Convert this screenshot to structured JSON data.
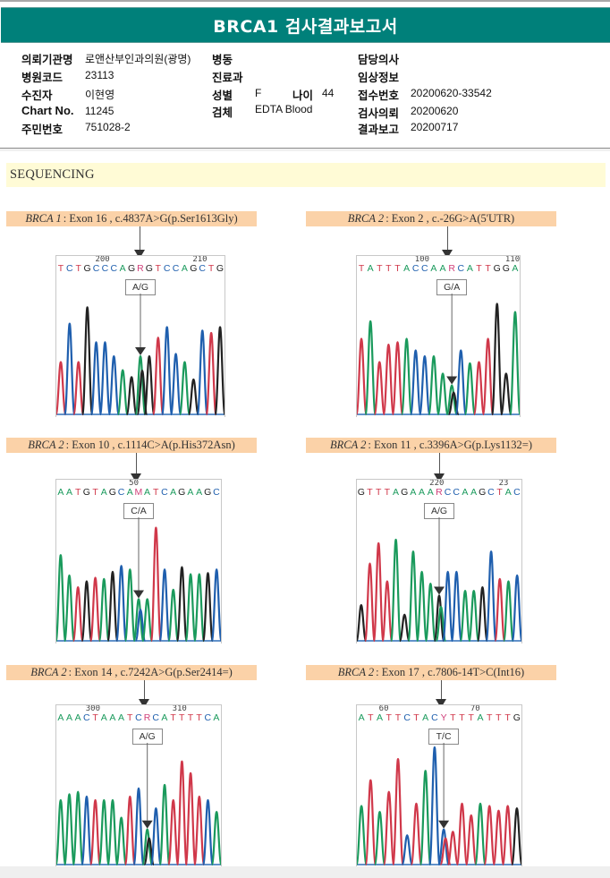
{
  "report": {
    "title": "BRCA1 검사결과보고서",
    "header_color": "#00807a"
  },
  "patient_info": {
    "institution_label": "의뢰기관명",
    "institution_value": "로앤산부인과의원(광명)",
    "hospital_code_label": "병원코드",
    "hospital_code_value": "23113",
    "patient_label": "수진자",
    "patient_value": "이현영",
    "chart_no_label": "Chart No.",
    "chart_no_value": "11245",
    "resident_no_label": "주민번호",
    "resident_no_value": "751028-2",
    "ward_label": "병동",
    "ward_value": "",
    "department_label": "진료과",
    "department_value": "",
    "sex_label": "성별",
    "sex_value": "F",
    "age_label": "나이",
    "age_value": "44",
    "specimen_label": "검체",
    "specimen_value": "EDTA Blood",
    "doctor_label": "담당의사",
    "doctor_value": "",
    "clinical_info_label": "임상정보",
    "clinical_info_value": "",
    "receipt_no_label": "접수번호",
    "receipt_no_value": "20200620-33542",
    "request_date_label": "검사의뢰",
    "request_date_value": "20200620",
    "report_date_label": "결과보고",
    "report_date_value": "20200717"
  },
  "section": {
    "title": "SEQUENCING"
  },
  "base_colors": {
    "A": "#1a9a5c",
    "C": "#1f5fae",
    "G": "#222222",
    "T": "#d0384a",
    "R": "#d0407a",
    "Y": "#d0407a",
    "M": "#d0407a"
  },
  "variants": [
    {
      "gene": "BRCA 1",
      "description": ": Exon 16 , c.4837A>G(p.Ser1613Gly)",
      "positions": [
        {
          "label": "200",
          "index": 5
        },
        {
          "label": "210",
          "index": 16
        }
      ],
      "sequence": "TCTGCCCAGRGTCCAGCTG",
      "variant_index": 9,
      "call": "A/G",
      "peaks": [
        [
          "T",
          0.45
        ],
        [
          "C",
          0.78
        ],
        [
          "T",
          0.45
        ],
        [
          "G",
          0.92
        ],
        [
          "C",
          0.62
        ],
        [
          "C",
          0.62
        ],
        [
          "C",
          0.5
        ],
        [
          "A",
          0.38
        ],
        [
          "G",
          0.32
        ],
        [
          "A",
          0.5
        ],
        [
          "G",
          0.5
        ],
        [
          "T",
          0.66
        ],
        [
          "C",
          0.75
        ],
        [
          "C",
          0.52
        ],
        [
          "A",
          0.45
        ],
        [
          "G",
          0.3
        ],
        [
          "C",
          0.72
        ],
        [
          "T",
          0.7
        ],
        [
          "G",
          0.75
        ]
      ]
    },
    {
      "gene": "BRCA 2",
      "description": ": Exon 2 , c.-26G>A(5'UTR)",
      "positions": [
        {
          "label": "100",
          "index": 7
        },
        {
          "label": "110",
          "index": 17
        }
      ],
      "sequence": "TATTTACCAARCATTGGA",
      "variant_index": 10,
      "call": "G/A",
      "peaks": [
        [
          "T",
          0.65
        ],
        [
          "A",
          0.8
        ],
        [
          "T",
          0.45
        ],
        [
          "T",
          0.6
        ],
        [
          "T",
          0.62
        ],
        [
          "A",
          0.65
        ],
        [
          "C",
          0.55
        ],
        [
          "C",
          0.5
        ],
        [
          "A",
          0.5
        ],
        [
          "A",
          0.35
        ],
        [
          "A",
          0.25
        ],
        [
          "C",
          0.55
        ],
        [
          "A",
          0.44
        ],
        [
          "T",
          0.45
        ],
        [
          "T",
          0.65
        ],
        [
          "G",
          0.95
        ],
        [
          "G",
          0.35
        ],
        [
          "A",
          0.88
        ]
      ]
    },
    {
      "gene": "BRCA 2",
      "description": ": Exon 10 , c.1114C>A(p.His372Asn)",
      "positions": [
        {
          "label": "50",
          "index": 9
        }
      ],
      "sequence": "AATGTAGCAMATCAGAAGC",
      "variant_index": 9,
      "call": "C/A",
      "peaks": [
        [
          "A",
          0.72
        ],
        [
          "A",
          0.55
        ],
        [
          "T",
          0.45
        ],
        [
          "G",
          0.5
        ],
        [
          "T",
          0.53
        ],
        [
          "A",
          0.52
        ],
        [
          "G",
          0.58
        ],
        [
          "C",
          0.63
        ],
        [
          "A",
          0.6
        ],
        [
          "A",
          0.35
        ],
        [
          "A",
          0.35
        ],
        [
          "T",
          0.95
        ],
        [
          "C",
          0.6
        ],
        [
          "A",
          0.43
        ],
        [
          "G",
          0.62
        ],
        [
          "A",
          0.56
        ],
        [
          "A",
          0.56
        ],
        [
          "G",
          0.57
        ],
        [
          "C",
          0.6
        ]
      ]
    },
    {
      "gene": "BRCA 2",
      "description": ": Exon 11 , c.3396A>G(p.Lys1132=)",
      "positions": [
        {
          "label": "220",
          "index": 9
        },
        {
          "label": "23",
          "index": 17
        }
      ],
      "sequence": "GTTTAGAAARCCAAGCTAC",
      "variant_index": 9,
      "call": "A/G",
      "peaks": [
        [
          "G",
          0.3
        ],
        [
          "T",
          0.65
        ],
        [
          "T",
          0.82
        ],
        [
          "T",
          0.5
        ],
        [
          "A",
          0.85
        ],
        [
          "G",
          0.22
        ],
        [
          "A",
          0.75
        ],
        [
          "A",
          0.58
        ],
        [
          "A",
          0.48
        ],
        [
          "G",
          0.38
        ],
        [
          "C",
          0.58
        ],
        [
          "C",
          0.58
        ],
        [
          "A",
          0.42
        ],
        [
          "A",
          0.42
        ],
        [
          "G",
          0.45
        ],
        [
          "C",
          0.75
        ],
        [
          "T",
          0.52
        ],
        [
          "A",
          0.5
        ],
        [
          "C",
          0.55
        ]
      ]
    },
    {
      "gene": "BRCA 2",
      "description": ": Exon 14 , c.7242A>G(p.Ser2414=)",
      "positions": [
        {
          "label": "300",
          "index": 4
        },
        {
          "label": "310",
          "index": 14
        }
      ],
      "sequence": "AAACTAAATCRCATTTTCA",
      "variant_index": 10,
      "call": "A/G",
      "peaks": [
        [
          "A",
          0.55
        ],
        [
          "A",
          0.6
        ],
        [
          "A",
          0.62
        ],
        [
          "C",
          0.58
        ],
        [
          "T",
          0.55
        ],
        [
          "A",
          0.55
        ],
        [
          "A",
          0.55
        ],
        [
          "A",
          0.4
        ],
        [
          "T",
          0.58
        ],
        [
          "C",
          0.65
        ],
        [
          "A",
          0.3
        ],
        [
          "C",
          0.48
        ],
        [
          "A",
          0.68
        ],
        [
          "T",
          0.55
        ],
        [
          "T",
          0.88
        ],
        [
          "T",
          0.78
        ],
        [
          "T",
          0.58
        ],
        [
          "C",
          0.55
        ],
        [
          "A",
          0.45
        ]
      ]
    },
    {
      "gene": "BRCA 2",
      "description": ": Exon 17 , c.7806-14T>C(Int16)",
      "positions": [
        {
          "label": "60",
          "index": 3
        },
        {
          "label": "70",
          "index": 13
        }
      ],
      "sequence": "ATATTCTACYTTTATTTG",
      "variant_index": 9,
      "call": "T/C",
      "peaks": [
        [
          "A",
          0.5
        ],
        [
          "T",
          0.72
        ],
        [
          "A",
          0.45
        ],
        [
          "T",
          0.62
        ],
        [
          "T",
          0.9
        ],
        [
          "C",
          0.25
        ],
        [
          "T",
          0.52
        ],
        [
          "A",
          0.8
        ],
        [
          "C",
          1.0
        ],
        [
          "C",
          0.3
        ],
        [
          "T",
          0.28
        ],
        [
          "T",
          0.52
        ],
        [
          "T",
          0.42
        ],
        [
          "A",
          0.52
        ],
        [
          "T",
          0.5
        ],
        [
          "T",
          0.46
        ],
        [
          "T",
          0.5
        ],
        [
          "G",
          0.48
        ]
      ]
    }
  ]
}
